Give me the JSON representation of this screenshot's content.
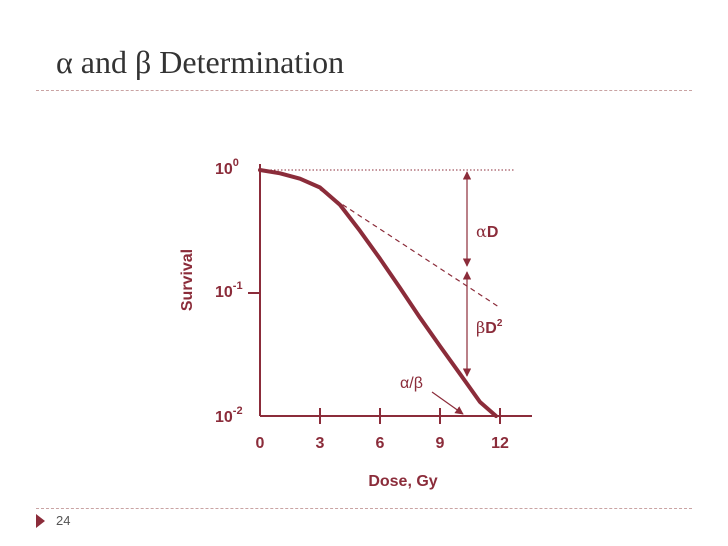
{
  "slide": {
    "title": "α and β Determination",
    "page_number": "24"
  },
  "colors": {
    "accent": "#8b2c3a",
    "text": "#333333",
    "rule": "#c9a3a3"
  },
  "chart_data": {
    "type": "line",
    "title": "",
    "xlabel": "Dose, Gy",
    "ylabel": "Survival",
    "xlim": [
      0,
      12
    ],
    "ylim": [
      0.01,
      1
    ],
    "y_scale": "log",
    "x_ticks": [
      0,
      3,
      6,
      9,
      12
    ],
    "x_tick_labels": [
      "0",
      "3",
      "6",
      "9",
      "12"
    ],
    "y_ticks": [
      {
        "value": 1,
        "base": "10",
        "exp": "0"
      },
      {
        "value": 0.1,
        "base": "10",
        "exp": "-1"
      },
      {
        "value": 0.01,
        "base": "10",
        "exp": "-2"
      }
    ],
    "grid": false,
    "legend": "none",
    "series": [
      {
        "style": "solid",
        "x": [
          0,
          1,
          2,
          3,
          4,
          5,
          6,
          7,
          8,
          9,
          10,
          11,
          11.8
        ],
        "y": [
          1,
          0.94,
          0.85,
          0.72,
          0.52,
          0.32,
          0.19,
          0.11,
          0.063,
          0.037,
          0.022,
          0.013,
          0.01
        ]
      },
      {
        "style": "dashed",
        "x": [
          3,
          12
        ],
        "y": [
          0.69,
          0.076
        ]
      }
    ],
    "annotations": [
      {
        "text": "αD",
        "greek": "α",
        "latin": "D",
        "sup": ""
      },
      {
        "text": "βD2",
        "greek": "β",
        "latin": "D",
        "sup": "2"
      },
      {
        "text": "α/β",
        "greek": "α/β",
        "latin": "",
        "sup": ""
      }
    ]
  }
}
